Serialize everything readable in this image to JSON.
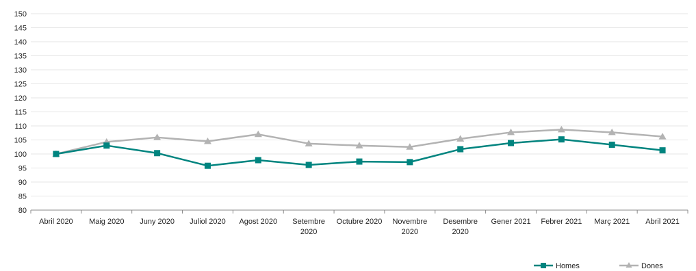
{
  "chart_data": {
    "type": "line",
    "title": "",
    "xlabel": "",
    "ylabel": "",
    "categories": [
      "Abril 2020",
      "Maig 2020",
      "Juny 2020",
      "Juliol 2020",
      "Agost 2020",
      "Setembre 2020",
      "Octubre 2020",
      "Novembre 2020",
      "Desembre 2020",
      "Gener 2021",
      "Febrer 2021",
      "Març 2021",
      "Abril 2021"
    ],
    "series": [
      {
        "name": "Homes",
        "color": "#00847F",
        "marker": "square",
        "values": [
          100,
          103,
          100.3,
          95.8,
          97.8,
          96.1,
          97.3,
          97.1,
          101.7,
          103.9,
          105.2,
          103.3,
          101.3
        ]
      },
      {
        "name": "Dones",
        "color": "#B3B3B3",
        "marker": "triangle",
        "values": [
          100,
          104.3,
          105.9,
          104.5,
          107,
          103.7,
          103,
          102.5,
          105.4,
          107.7,
          108.7,
          107.7,
          106.2
        ]
      }
    ],
    "ylim": [
      80,
      150
    ],
    "yticks": [
      80,
      85,
      90,
      95,
      100,
      105,
      110,
      115,
      120,
      125,
      130,
      135,
      140,
      145,
      150
    ],
    "grid": true,
    "legend_position": "bottom-right"
  }
}
